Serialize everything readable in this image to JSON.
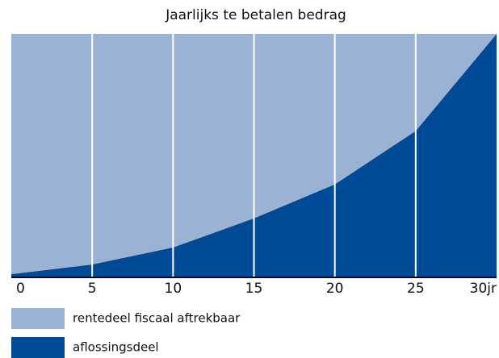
{
  "chart_data": {
    "type": "stacked-area",
    "title": "Jaarlijks te betalen bedrag",
    "x": [
      0,
      5,
      10,
      15,
      20,
      25,
      30
    ],
    "xlim": [
      0,
      30
    ],
    "xticks": [
      0,
      5,
      10,
      15,
      20,
      25,
      {
        "value": 30,
        "label": "30jr"
      }
    ],
    "ylim": [
      0,
      100
    ],
    "grid": true,
    "series": [
      {
        "name": "rentedeel fiscaal aftrekbaar",
        "color": "#9ab3d5",
        "values": [
          99,
          95,
          88,
          76,
          62,
          40,
          0
        ]
      },
      {
        "name": "aflossingsdeel",
        "color": "#004b97",
        "values": [
          1,
          5,
          12,
          24,
          38,
          60,
          100
        ]
      }
    ]
  }
}
